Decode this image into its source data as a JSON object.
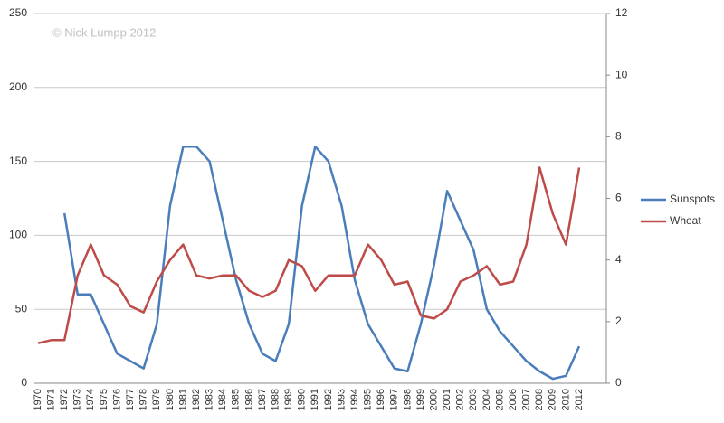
{
  "chart_data": {
    "type": "line",
    "annotations": [
      "© Nick Lumpp 2012"
    ],
    "categories": [
      "1970",
      "1971",
      "1972",
      "1973",
      "1974",
      "1975",
      "1976",
      "1977",
      "1978",
      "1979",
      "1980",
      "1981",
      "1982",
      "1983",
      "1984",
      "1985",
      "1986",
      "1987",
      "1988",
      "1989",
      "1990",
      "1991",
      "1992",
      "1993",
      "1994",
      "1995",
      "1996",
      "1997",
      "1998",
      "1999",
      "2000",
      "2001",
      "2002",
      "2003",
      "2004",
      "2005",
      "2006",
      "2007",
      "2008",
      "2009",
      "2010",
      "2012"
    ],
    "series": [
      {
        "name": "Sunspots",
        "color": "#4a7ebb",
        "axis": "y",
        "values": [
          null,
          null,
          115,
          60,
          60,
          40,
          20,
          15,
          10,
          40,
          120,
          160,
          160,
          150,
          110,
          70,
          40,
          20,
          15,
          40,
          120,
          160,
          150,
          120,
          70,
          40,
          25,
          10,
          8,
          40,
          80,
          130,
          110,
          90,
          50,
          35,
          25,
          15,
          8,
          3,
          5,
          25
        ]
      },
      {
        "name": "Wheat",
        "color": "#be4b48",
        "axis": "y2",
        "values": [
          1.3,
          1.4,
          1.4,
          3.5,
          4.5,
          3.5,
          3.2,
          2.5,
          2.3,
          3.3,
          4.0,
          4.5,
          3.5,
          3.4,
          3.5,
          3.5,
          3.0,
          2.8,
          3.0,
          4.0,
          3.8,
          3.0,
          3.5,
          3.5,
          3.5,
          4.5,
          4.0,
          3.2,
          3.3,
          2.2,
          2.1,
          2.4,
          3.3,
          3.5,
          3.8,
          3.2,
          3.3,
          4.5,
          7.0,
          5.5,
          4.5,
          7.0
        ]
      }
    ],
    "ylim": [
      0,
      250
    ],
    "yticks": [
      0,
      50,
      100,
      150,
      200,
      250
    ],
    "y2lim": [
      0,
      12
    ],
    "y2ticks": [
      0,
      2,
      4,
      6,
      8,
      10,
      12
    ],
    "grid": true,
    "legend": "right"
  }
}
